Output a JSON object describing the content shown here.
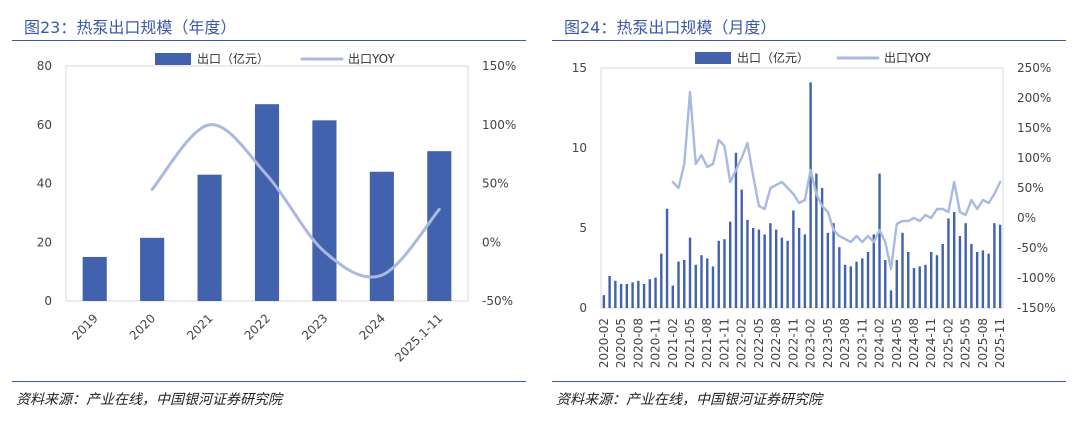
{
  "left": {
    "title": "图23：热泵出口规模（年度）",
    "source": "资料来源：产业在线，中国银河证券研究院"
  },
  "right": {
    "title": "图24：热泵出口规模（月度）",
    "source": "资料来源：产业在线，中国银河证券研究院"
  },
  "colors": {
    "bar": "#4262ad",
    "line": "#a9b9e0",
    "title": "#3b59a9"
  },
  "chart_data": [
    {
      "type": "bar",
      "categories": [
        "2019",
        "2020",
        "2021",
        "2022",
        "2023",
        "2024",
        "2025.1-11"
      ],
      "series": [
        {
          "name": "出口（亿元）",
          "type": "bar",
          "axis": "left",
          "values": [
            15,
            21.5,
            43,
            67,
            61.5,
            44,
            51
          ]
        },
        {
          "name": "出口YOY",
          "type": "line",
          "axis": "right",
          "values": [
            null,
            45,
            100,
            57,
            -8,
            -28,
            28
          ]
        }
      ],
      "y_left": {
        "min": 0,
        "max": 80,
        "ticks": [
          "0",
          "20",
          "40",
          "60",
          "80"
        ]
      },
      "y_right": {
        "min": -50,
        "max": 150,
        "ticks": [
          "-50%",
          "0%",
          "50%",
          "100%",
          "150%"
        ]
      }
    },
    {
      "type": "bar",
      "categories": [
        "2020-02",
        "2020-03",
        "2020-04",
        "2020-05",
        "2020-06",
        "2020-07",
        "2020-08",
        "2020-09",
        "2020-10",
        "2020-11",
        "2020-12",
        "2021-01",
        "2021-02",
        "2021-03",
        "2021-04",
        "2021-05",
        "2021-06",
        "2021-07",
        "2021-08",
        "2021-09",
        "2021-10",
        "2021-11",
        "2021-12",
        "2022-01",
        "2022-02",
        "2022-03",
        "2022-04",
        "2022-05",
        "2022-06",
        "2022-07",
        "2022-08",
        "2022-09",
        "2022-10",
        "2022-11",
        "2022-12",
        "2023-01",
        "2023-02",
        "2023-03",
        "2023-04",
        "2023-05",
        "2023-06",
        "2023-07",
        "2023-08",
        "2023-09",
        "2023-10",
        "2023-11",
        "2023-12",
        "2024-01",
        "2024-02",
        "2024-03",
        "2024-04",
        "2024-05",
        "2024-06",
        "2024-07",
        "2024-08",
        "2024-09",
        "2024-10",
        "2024-11",
        "2024-12",
        "2025-01",
        "2025-02",
        "2025-03",
        "2025-04",
        "2025-05",
        "2025-06",
        "2025-07",
        "2025-08",
        "2025-09",
        "2025-10",
        "2025-11"
      ],
      "x_tick_labels": [
        "2020-02",
        "2020-05",
        "2020-08",
        "2020-11",
        "2021-02",
        "2021-05",
        "2021-08",
        "2021-11",
        "2022-02",
        "2022-05",
        "2022-08",
        "2022-11",
        "2023-02",
        "2023-05",
        "2023-08",
        "2023-11",
        "2024-02",
        "2024-05",
        "2024-08",
        "2024-11",
        "2025-02",
        "2025-05",
        "2025-08",
        "2025-11"
      ],
      "series": [
        {
          "name": "出口（亿元）",
          "type": "bar",
          "axis": "left",
          "values": [
            0.8,
            2.0,
            1.7,
            1.5,
            1.5,
            1.6,
            1.7,
            1.5,
            1.8,
            1.9,
            3.4,
            6.2,
            1.4,
            2.9,
            3.0,
            4.4,
            2.7,
            3.3,
            3.1,
            2.6,
            4.2,
            4.3,
            5.4,
            9.7,
            7.4,
            5.5,
            5.0,
            4.9,
            4.6,
            5.3,
            4.9,
            4.4,
            4.2,
            6.1,
            5.0,
            4.6,
            14.1,
            8.4,
            7.5,
            4.7,
            5.3,
            3.8,
            2.7,
            2.6,
            2.9,
            3.1,
            3.5,
            4.6,
            8.4,
            3.0,
            1.1,
            3.0,
            4.7,
            3.5,
            2.5,
            2.6,
            2.7,
            3.5,
            3.3,
            4.0,
            5.6,
            6.0,
            4.5,
            5.3,
            4.0,
            3.5,
            3.6,
            3.4,
            5.3,
            5.2
          ]
        },
        {
          "name": "出口YOY",
          "type": "line",
          "axis": "right",
          "values": [
            null,
            null,
            null,
            null,
            null,
            null,
            null,
            null,
            null,
            null,
            null,
            null,
            60,
            50,
            90,
            210,
            90,
            105,
            85,
            90,
            130,
            120,
            60,
            80,
            100,
            125,
            70,
            20,
            15,
            50,
            55,
            60,
            50,
            40,
            25,
            30,
            80,
            40,
            20,
            10,
            -20,
            -30,
            -35,
            -40,
            -30,
            -40,
            -30,
            -40,
            -20,
            -40,
            -85,
            -10,
            -5,
            -5,
            0,
            -5,
            5,
            0,
            15,
            15,
            10,
            60,
            10,
            5,
            30,
            15,
            30,
            25,
            40,
            60
          ]
        }
      ],
      "y_left": {
        "min": 0,
        "max": 15,
        "ticks": [
          "0",
          "5",
          "10",
          "15"
        ]
      },
      "y_right": {
        "min": -150,
        "max": 250,
        "ticks": [
          "-150%",
          "-100%",
          "-50%",
          "0%",
          "50%",
          "100%",
          "150%",
          "200%",
          "250%"
        ]
      }
    }
  ]
}
